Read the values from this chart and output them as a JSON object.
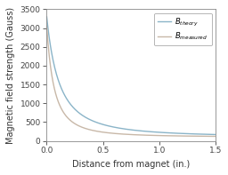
{
  "title": "",
  "xlabel": "Distance from magnet (in.)",
  "ylabel": "Magnetic field strength (Gauss)",
  "xlim": [
    0,
    1.5
  ],
  "ylim": [
    0,
    3500
  ],
  "xticks": [
    0,
    0.5,
    1.0,
    1.5
  ],
  "yticks": [
    0,
    500,
    1000,
    1500,
    2000,
    2500,
    3000,
    3500
  ],
  "theory_color": "#8ab4c8",
  "measured_color": "#c8b8a8",
  "background_color": "#ffffff",
  "axes_color": "#888888",
  "tick_color": "#444444",
  "label_color": "#333333"
}
